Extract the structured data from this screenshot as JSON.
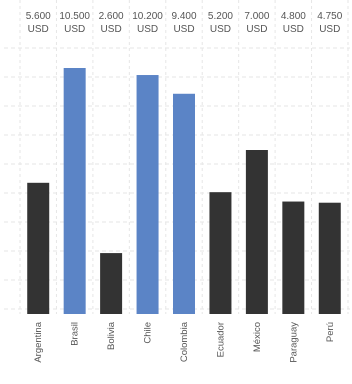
{
  "chart_data": {
    "type": "bar",
    "title": "",
    "xlabel": "",
    "ylabel": "",
    "categories": [
      "Argentina",
      "Brasil",
      "Bolivia",
      "Chile",
      "Colombia",
      "Ecuador",
      "México",
      "Paraguay",
      "Perú"
    ],
    "values": [
      5600,
      10500,
      2600,
      10200,
      9400,
      5200,
      7000,
      4800,
      4750
    ],
    "value_labels": [
      "5.600",
      "10.500",
      "2.600",
      "10.200",
      "9.400",
      "5.200",
      "7.000",
      "4.800",
      "4.750"
    ],
    "unit": "USD",
    "highlighted": [
      "Brasil",
      "Chile",
      "Colombia"
    ],
    "colors": {
      "highlight": "#5b84c6",
      "default": "#333333",
      "grid": "#e6e6e6",
      "text": "#555555"
    },
    "grid": true
  }
}
